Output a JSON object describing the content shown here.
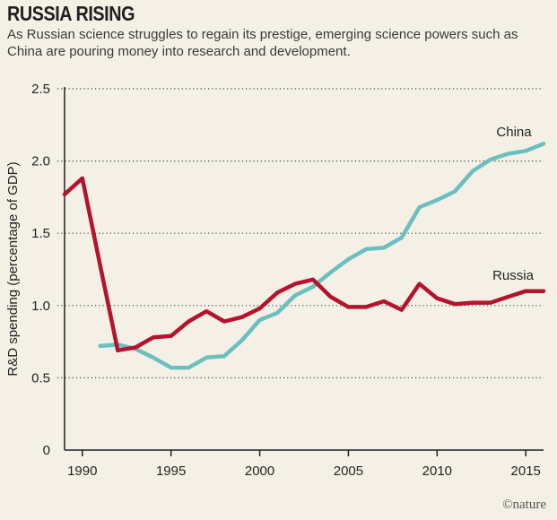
{
  "header": {
    "title": "RUSSIA RISING",
    "subtitle": "As Russian science struggles to regain its prestige, emerging science powers such as China are pouring money into research and development."
  },
  "credit": "©nature",
  "colors": {
    "China": "#6cbfbf",
    "Russia": "#b5122e",
    "grid": "#444444",
    "background": "#f4f0e6"
  },
  "chart_data": {
    "type": "line",
    "title": "RUSSIA RISING",
    "ylabel": "R&D spending (percentage of GDP)",
    "xlabel": "",
    "xlim": [
      1989,
      2016
    ],
    "ylim": [
      0,
      2.5
    ],
    "xticks": [
      "1990",
      "1995",
      "2000",
      "2005",
      "2010",
      "2015"
    ],
    "yticks": [
      "0",
      "0.5",
      "1.0",
      "1.5",
      "2.0",
      "2.5"
    ],
    "grid": "horizontal dotted",
    "series": [
      {
        "name": "China",
        "x": [
          1991,
          1992,
          1993,
          1994,
          1995,
          1996,
          1997,
          1998,
          1999,
          2000,
          2001,
          2002,
          2003,
          2004,
          2005,
          2006,
          2007,
          2008,
          2009,
          2010,
          2011,
          2012,
          2013,
          2014,
          2015,
          2016
        ],
        "values": [
          0.72,
          0.73,
          0.7,
          0.64,
          0.57,
          0.57,
          0.64,
          0.65,
          0.76,
          0.9,
          0.95,
          1.07,
          1.13,
          1.23,
          1.32,
          1.39,
          1.4,
          1.47,
          1.68,
          1.73,
          1.79,
          1.93,
          2.01,
          2.05,
          2.07,
          2.12
        ]
      },
      {
        "name": "Russia",
        "x": [
          1989,
          1990,
          1991,
          1992,
          1993,
          1994,
          1995,
          1996,
          1997,
          1998,
          1999,
          2000,
          2001,
          2002,
          2003,
          2004,
          2005,
          2006,
          2007,
          2008,
          2009,
          2010,
          2011,
          2012,
          2013,
          2014,
          2015,
          2016
        ],
        "values": [
          1.77,
          1.88,
          1.28,
          0.69,
          0.71,
          0.78,
          0.79,
          0.89,
          0.96,
          0.89,
          0.92,
          0.98,
          1.09,
          1.15,
          1.18,
          1.06,
          0.99,
          0.99,
          1.03,
          0.97,
          1.15,
          1.05,
          1.01,
          1.02,
          1.02,
          1.06,
          1.1,
          1.1
        ]
      }
    ]
  }
}
